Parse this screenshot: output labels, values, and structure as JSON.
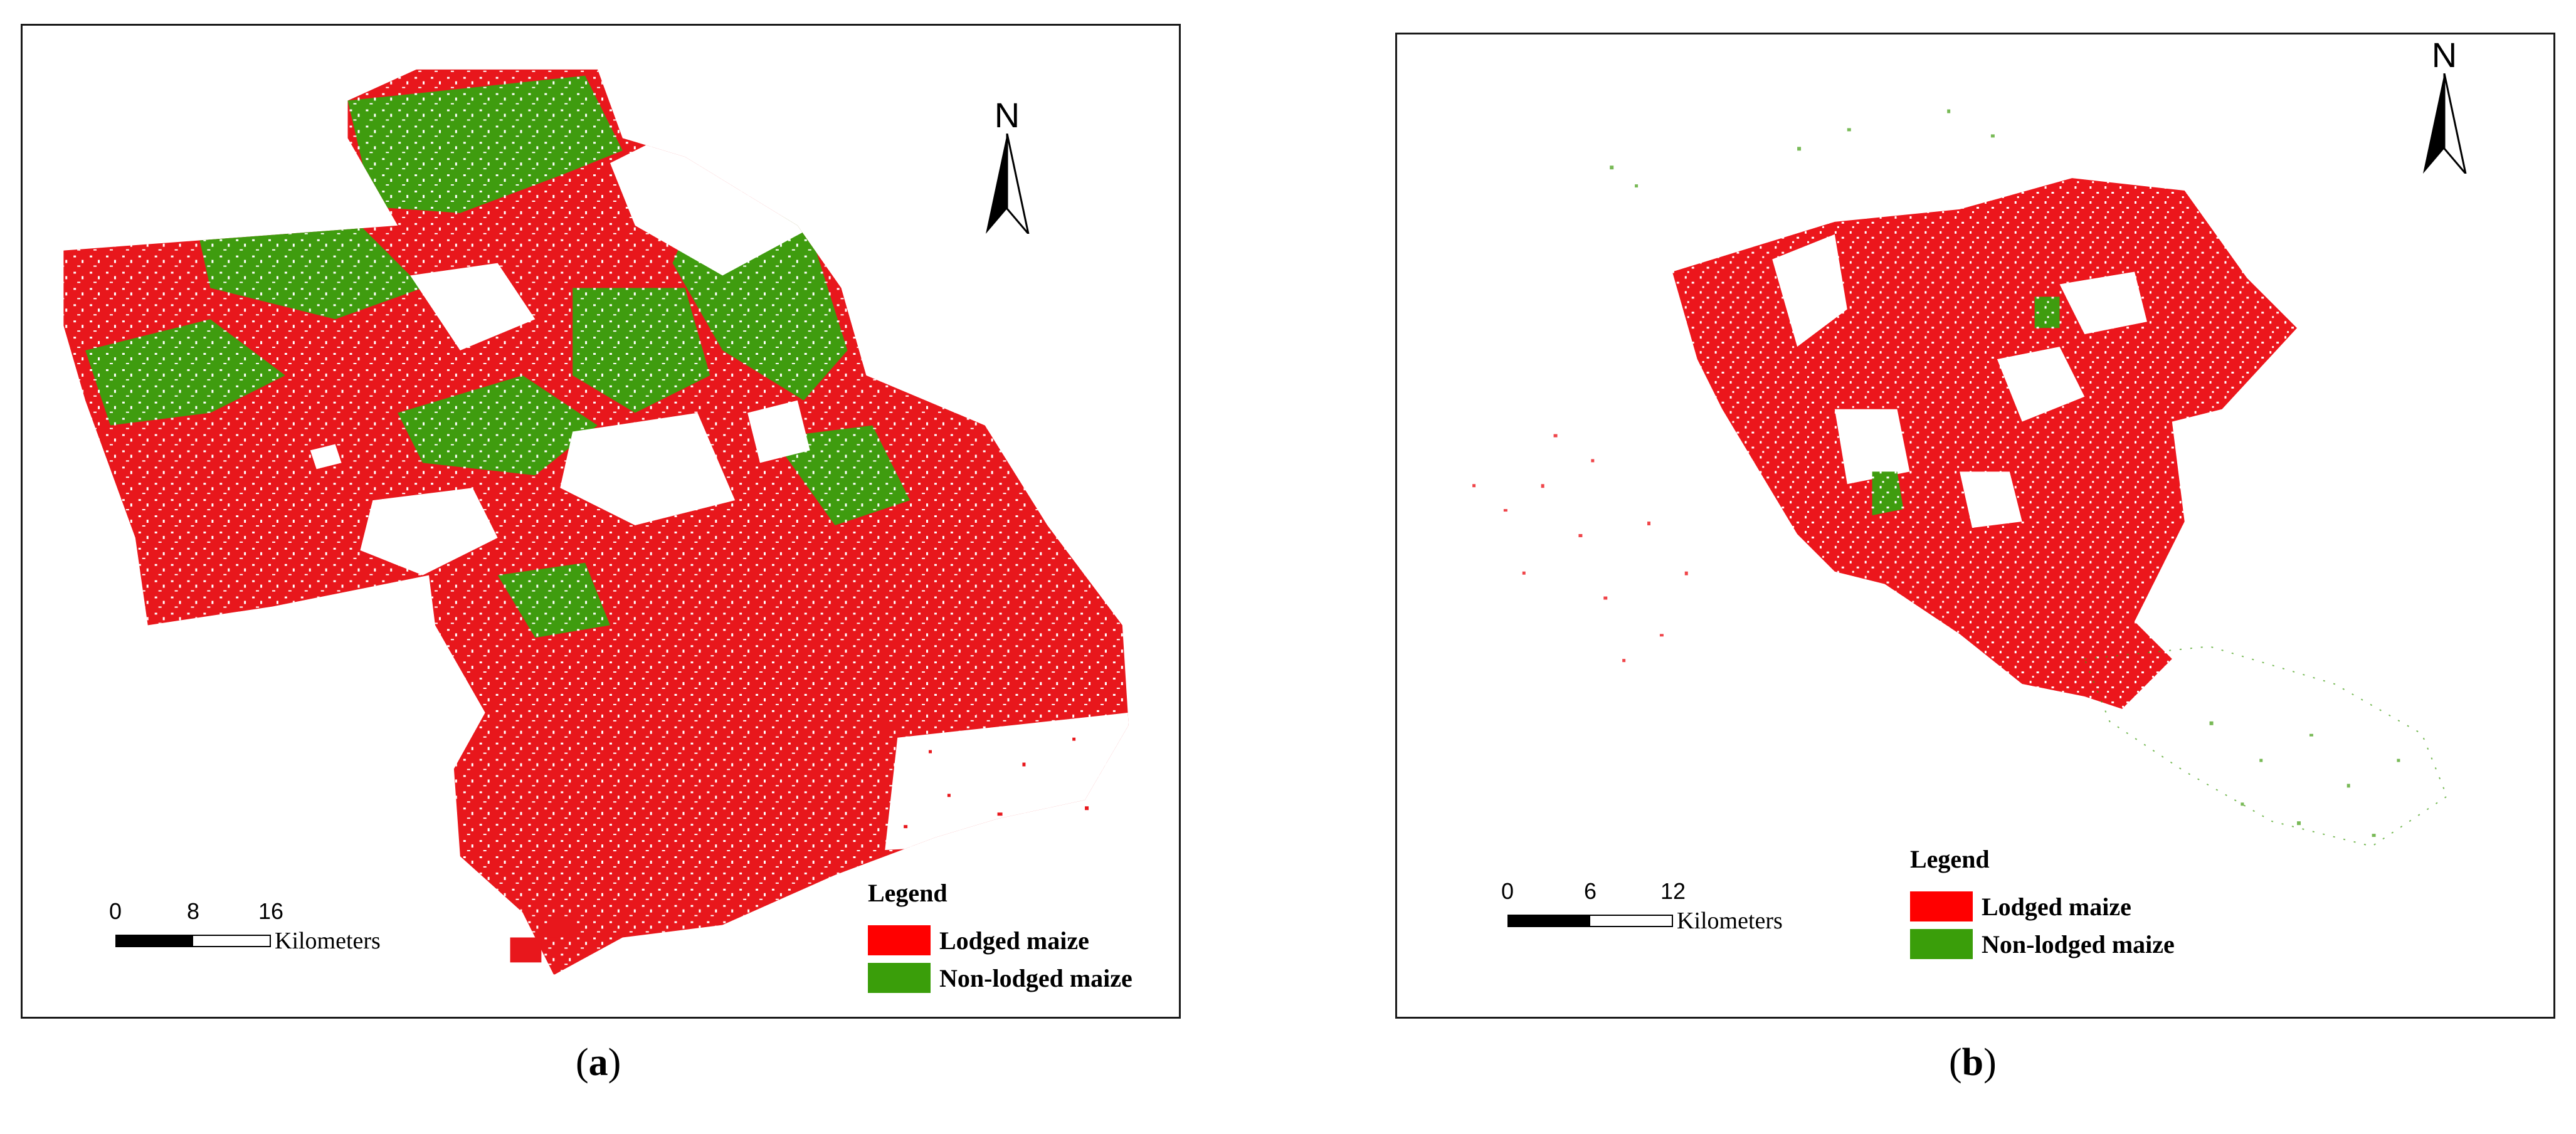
{
  "panels": [
    {
      "id": "a",
      "caption_letter": "a",
      "north_label": "N",
      "legend": {
        "title": "Legend",
        "items": [
          {
            "label": "Lodged maize",
            "color": "#ff0000"
          },
          {
            "label": "Non-lodged maize",
            "color": "#3a9e0a"
          }
        ]
      },
      "scalebar": {
        "ticks": [
          "0",
          "8",
          "16"
        ],
        "unit": "Kilometers"
      }
    },
    {
      "id": "b",
      "caption_letter": "b",
      "north_label": "N",
      "legend": {
        "title": "Legend",
        "items": [
          {
            "label": "Lodged maize",
            "color": "#ff0000"
          },
          {
            "label": "Non-lodged maize",
            "color": "#3a9e0a"
          }
        ]
      },
      "scalebar": {
        "ticks": [
          "0",
          "6",
          "12"
        ],
        "unit": "Kilometers"
      }
    }
  ],
  "colors": {
    "lodged": "#ff0000",
    "non_lodged": "#3a9e0a",
    "frame": "#1a1a1a"
  }
}
